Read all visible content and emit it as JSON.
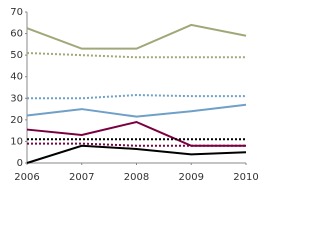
{
  "chart_data": {
    "type": "line",
    "x": [
      2006,
      2007,
      2008,
      2009,
      2010
    ],
    "xlim": [
      2006,
      2010
    ],
    "xticks": [
      2006,
      2007,
      2008,
      2009,
      2010
    ],
    "ylim": [
      0,
      70
    ],
    "yticks": [
      0,
      10,
      20,
      30,
      40,
      50,
      60,
      70
    ],
    "series": [
      {
        "color": "#9fa878",
        "dashed": false,
        "values": [
          62.5,
          53,
          53,
          64,
          59
        ]
      },
      {
        "color": "#9fa878",
        "dashed": true,
        "values": [
          51,
          50,
          49,
          49,
          49
        ]
      },
      {
        "color": "#6fa0c8",
        "dashed": true,
        "values": [
          30,
          30,
          31.5,
          31,
          31
        ]
      },
      {
        "color": "#6fa0c8",
        "dashed": false,
        "values": [
          22,
          25,
          21.5,
          24,
          27
        ]
      },
      {
        "color": "#7a0040",
        "dashed": false,
        "values": [
          15.5,
          13,
          19,
          8,
          8
        ]
      },
      {
        "color": "#000000",
        "dashed": true,
        "values": [
          11,
          11,
          11,
          11,
          11
        ]
      },
      {
        "color": "#7a0040",
        "dashed": true,
        "values": [
          9,
          9,
          8,
          8,
          8
        ]
      },
      {
        "color": "#000000",
        "dashed": false,
        "values": [
          0,
          8,
          6.5,
          4,
          5
        ]
      }
    ]
  }
}
